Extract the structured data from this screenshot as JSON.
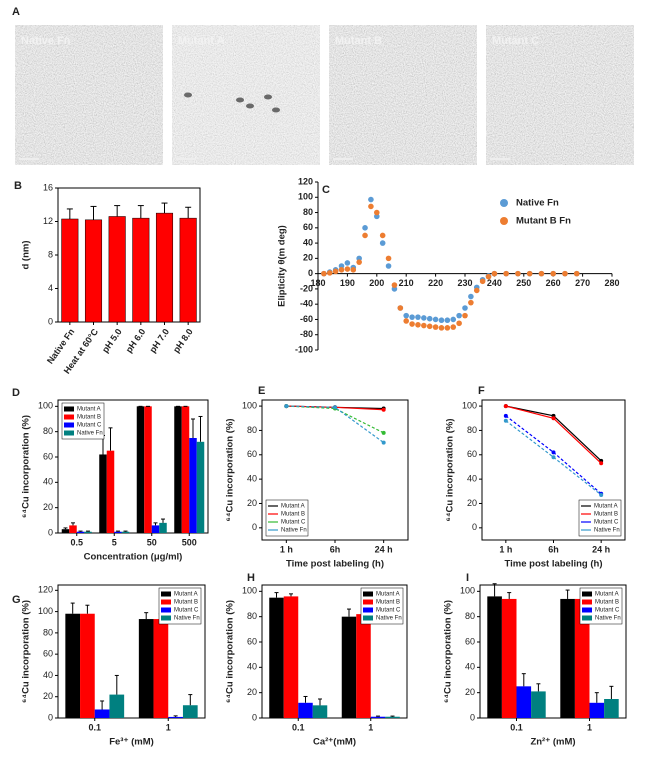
{
  "panel_a": {
    "panel": "A",
    "images": [
      "Native Fn",
      "Mutant A",
      "Mutant B",
      "Mutant C"
    ]
  },
  "chart_data": [
    {
      "type": "bar",
      "panel": "B",
      "ylabel": "d (nm)",
      "categories": [
        "Native Fn",
        "Heat at 60°C",
        "pH 5.0",
        "pH 6.0",
        "pH 7.0",
        "pH 8.0"
      ],
      "values": [
        12.3,
        12.2,
        12.6,
        12.4,
        13.0,
        12.4
      ],
      "errors": [
        1.2,
        1.6,
        1.3,
        1.5,
        1.2,
        1.3
      ],
      "color": "#ff0000",
      "ylim": [
        0,
        16
      ],
      "yticks": [
        0,
        4,
        8,
        12,
        16
      ]
    },
    {
      "type": "scatter",
      "panel": "C",
      "ylabel": "Elipticity θ(m deg)",
      "x": [
        182,
        184,
        186,
        188,
        190,
        192,
        194,
        196,
        198,
        200,
        202,
        204,
        206,
        208,
        210,
        212,
        214,
        216,
        218,
        220,
        222,
        224,
        226,
        228,
        230,
        232,
        234,
        236,
        238,
        240,
        244,
        248,
        252,
        256,
        260,
        264,
        268
      ],
      "series": [
        {
          "name": "Native Fn",
          "color": "#5b9bd5",
          "values": [
            0,
            2,
            5,
            10,
            14,
            8,
            20,
            60,
            97,
            75,
            40,
            10,
            -20,
            -45,
            -55,
            -57,
            -57,
            -58,
            -59,
            -60,
            -61,
            -61,
            -60,
            -55,
            -45,
            -30,
            -18,
            -8,
            -3,
            0,
            0,
            0,
            0,
            0,
            0,
            0,
            0
          ]
        },
        {
          "name": "Mutant B Fn",
          "color": "#ed7d31",
          "values": [
            0,
            1,
            3,
            5,
            6,
            5,
            15,
            50,
            88,
            80,
            50,
            20,
            -15,
            -45,
            -62,
            -66,
            -67,
            -68,
            -69,
            -70,
            -71,
            -71,
            -70,
            -65,
            -55,
            -38,
            -22,
            -10,
            -4,
            0,
            0,
            0,
            0,
            0,
            0,
            0,
            0
          ]
        }
      ],
      "xlim": [
        180,
        280
      ],
      "xticks": [
        180,
        190,
        200,
        210,
        220,
        230,
        240,
        250,
        260,
        270,
        280
      ],
      "ylim": [
        -100,
        120
      ],
      "yticks": [
        -100,
        -80,
        -60,
        -40,
        -20,
        0,
        20,
        40,
        60,
        80,
        100,
        120
      ],
      "legend": "upper right"
    },
    {
      "type": "bar",
      "panel": "D",
      "ylabel": "⁶⁴Cu incorporation (%)",
      "xlabel": "Concentration (μg/ml)",
      "categories": [
        "0.5",
        "5",
        "50",
        "500"
      ],
      "series": [
        {
          "name": "Mutant A",
          "color": "#000000",
          "values": [
            3,
            62,
            100,
            100
          ],
          "errors": [
            1,
            15,
            0,
            0
          ]
        },
        {
          "name": "Mutant B",
          "color": "#ff0000",
          "values": [
            6,
            65,
            100,
            100
          ],
          "errors": [
            2,
            18,
            0,
            0
          ]
        },
        {
          "name": "Mutant C",
          "color": "#0000ff",
          "values": [
            1,
            1,
            6,
            75
          ],
          "errors": [
            0.5,
            0.5,
            2,
            15
          ]
        },
        {
          "name": "Native Fn",
          "color": "#008080",
          "values": [
            1,
            1,
            8,
            72
          ],
          "errors": [
            0.5,
            0.5,
            3,
            20
          ]
        }
      ],
      "ylim": [
        0,
        105
      ],
      "yticks": [
        0,
        20,
        40,
        60,
        80,
        100
      ],
      "legend": "upper left"
    },
    {
      "type": "line",
      "panel": "E",
      "ylabel": "⁶⁴Cu incorporation (%)",
      "xlabel": "Time post labeling (h)",
      "categories": [
        "1 h",
        "6h",
        "24 h"
      ],
      "series": [
        {
          "name": "Mutant A",
          "color": "#000000",
          "values": [
            100,
            99,
            98
          ]
        },
        {
          "name": "Mutant B",
          "color": "#ff0000",
          "values": [
            100,
            99,
            97
          ]
        },
        {
          "name": "Mutant C",
          "color": "#33bb33",
          "values": [
            100,
            98,
            78
          ]
        },
        {
          "name": "Native Fn",
          "color": "#3399cc",
          "values": [
            100,
            99,
            70
          ]
        }
      ],
      "ylim": [
        -10,
        105
      ],
      "yticks": [
        0,
        20,
        40,
        60,
        80,
        100
      ],
      "legend": "lower left"
    },
    {
      "type": "line",
      "panel": "F",
      "ylabel": "⁶⁴Cu incorporation (%)",
      "xlabel": "Time post labeling (h)",
      "categories": [
        "1 h",
        "6h",
        "24 h"
      ],
      "series": [
        {
          "name": "Mutant A",
          "color": "#000000",
          "values": [
            100,
            92,
            55
          ]
        },
        {
          "name": "Mutant B",
          "color": "#ff0000",
          "values": [
            100,
            90,
            53
          ]
        },
        {
          "name": "Mutant C",
          "color": "#0000ff",
          "values": [
            92,
            62,
            28
          ]
        },
        {
          "name": "Native Fn",
          "color": "#3399cc",
          "values": [
            88,
            58,
            27
          ]
        }
      ],
      "ylim": [
        -10,
        105
      ],
      "yticks": [
        0,
        20,
        40,
        60,
        80,
        100
      ],
      "legend": "lower right"
    },
    {
      "type": "bar",
      "panel": "G",
      "ylabel": "⁶⁴Cu incorporation (%)",
      "xlabel": "Fe³⁺ (mM)",
      "categories": [
        "0.1",
        "1"
      ],
      "series": [
        {
          "name": "Mutant A",
          "color": "#000000",
          "values": [
            98,
            93
          ],
          "errors": [
            10,
            6
          ]
        },
        {
          "name": "Mutant B",
          "color": "#ff0000",
          "values": [
            98,
            93
          ],
          "errors": [
            8,
            5
          ]
        },
        {
          "name": "Mutant C",
          "color": "#0000ff",
          "values": [
            8,
            1
          ],
          "errors": [
            8,
            1
          ]
        },
        {
          "name": "Native Fn",
          "color": "#008080",
          "values": [
            22,
            12
          ],
          "errors": [
            18,
            10
          ]
        }
      ],
      "ylim": [
        0,
        125
      ],
      "yticks": [
        0,
        20,
        40,
        60,
        80,
        100,
        120
      ],
      "legend": "upper right"
    },
    {
      "type": "bar",
      "panel": "H",
      "ylabel": "⁶⁴Cu incorporation (%)",
      "xlabel": "Ca²⁺(mM)",
      "categories": [
        "0.1",
        "1"
      ],
      "series": [
        {
          "name": "Mutant A",
          "color": "#000000",
          "values": [
            95,
            80
          ],
          "errors": [
            4,
            6
          ]
        },
        {
          "name": "Mutant B",
          "color": "#ff0000",
          "values": [
            96,
            82
          ],
          "errors": [
            2,
            3
          ]
        },
        {
          "name": "Mutant C",
          "color": "#0000ff",
          "values": [
            12,
            1
          ],
          "errors": [
            5,
            0.5
          ]
        },
        {
          "name": "Native Fn",
          "color": "#008080",
          "values": [
            10,
            1
          ],
          "errors": [
            5,
            0.5
          ]
        }
      ],
      "ylim": [
        0,
        105
      ],
      "yticks": [
        0,
        20,
        40,
        60,
        80,
        100
      ],
      "legend": "upper right"
    },
    {
      "type": "bar",
      "panel": "I",
      "ylabel": "⁶⁴Cu incorporation (%)",
      "xlabel": "Zn²⁺ (mM)",
      "categories": [
        "0.1",
        "1"
      ],
      "series": [
        {
          "name": "Mutant A",
          "color": "#000000",
          "values": [
            96,
            94
          ],
          "errors": [
            10,
            7
          ]
        },
        {
          "name": "Mutant B",
          "color": "#ff0000",
          "values": [
            94,
            94
          ],
          "errors": [
            5,
            4
          ]
        },
        {
          "name": "Mutant C",
          "color": "#0000ff",
          "values": [
            25,
            12
          ],
          "errors": [
            10,
            8
          ]
        },
        {
          "name": "Native Fn",
          "color": "#008080",
          "values": [
            21,
            15
          ],
          "errors": [
            6,
            10
          ]
        }
      ],
      "ylim": [
        0,
        105
      ],
      "yticks": [
        0,
        20,
        40,
        60,
        80,
        100
      ],
      "legend": "upper right"
    }
  ]
}
